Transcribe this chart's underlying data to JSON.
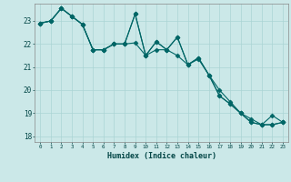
{
  "xlabel": "Humidex (Indice chaleur)",
  "bg_color": "#cbe8e8",
  "line_color": "#006666",
  "x_values": [
    0,
    1,
    2,
    3,
    4,
    5,
    6,
    7,
    8,
    9,
    10,
    11,
    12,
    13,
    14,
    15,
    16,
    17,
    18,
    19,
    20,
    21,
    22,
    23
  ],
  "series1": [
    22.9,
    23.0,
    23.55,
    23.2,
    22.85,
    21.75,
    21.75,
    22.0,
    22.0,
    23.3,
    21.5,
    22.1,
    21.75,
    22.3,
    21.1,
    21.4,
    20.65,
    19.75,
    19.4,
    19.0,
    18.6,
    18.5,
    18.5,
    18.6
  ],
  "series2": [
    22.9,
    23.0,
    23.55,
    23.2,
    22.85,
    21.75,
    21.75,
    22.0,
    22.0,
    22.05,
    21.5,
    21.75,
    21.75,
    21.5,
    21.1,
    21.35,
    20.65,
    20.0,
    19.5,
    19.0,
    18.75,
    18.5,
    18.5,
    18.6
  ],
  "series3": [
    22.9,
    23.0,
    23.55,
    23.2,
    22.85,
    21.75,
    21.75,
    22.0,
    22.0,
    23.3,
    21.5,
    22.1,
    21.75,
    22.3,
    21.1,
    21.4,
    20.65,
    19.75,
    19.4,
    19.0,
    18.6,
    18.5,
    18.9,
    18.6
  ],
  "ylim": [
    17.75,
    23.75
  ],
  "xlim": [
    -0.5,
    23.5
  ],
  "yticks": [
    18,
    19,
    20,
    21,
    22,
    23
  ],
  "xticks": [
    0,
    1,
    2,
    3,
    4,
    5,
    6,
    7,
    8,
    9,
    10,
    11,
    12,
    13,
    14,
    15,
    16,
    17,
    18,
    19,
    20,
    21,
    22,
    23
  ],
  "markersize": 2.5,
  "linewidth": 0.8,
  "grid_color": "#aad4d4",
  "grid_lw": 0.5
}
